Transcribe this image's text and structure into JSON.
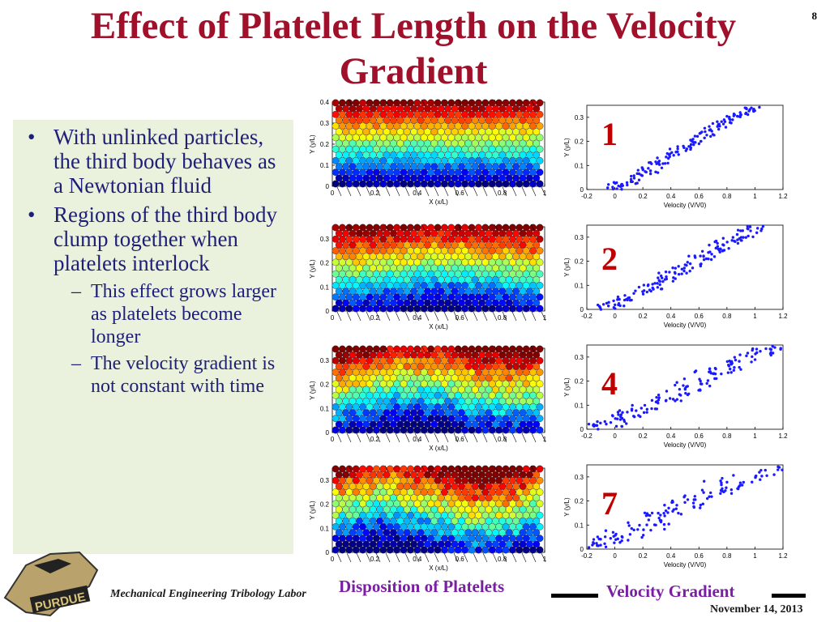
{
  "title": "Effect of Platelet Length on the Velocity Gradient",
  "slide_number": "8",
  "bullets": [
    {
      "level": 1,
      "text": "With unlinked particles, the third body behaves as a Newtonian fluid"
    },
    {
      "level": 1,
      "text": "Regions of the third body clump together when platelets interlock"
    },
    {
      "level": 2,
      "text": "This effect grows larger as platelets become longer"
    },
    {
      "level": 2,
      "text": "The velocity gradient is not constant with time"
    }
  ],
  "panel_labels": [
    "1",
    "2",
    "4",
    "7"
  ],
  "bottom_labels": {
    "left": "Disposition of Platelets",
    "right": "Velocity Gradient"
  },
  "footer": {
    "lab": "Mechanical Engineering Tribology Labor",
    "date": "November 14, 2013",
    "logo_text": "PURDUE"
  },
  "colors": {
    "title": "#a0102a",
    "bullet_text": "#1f1f78",
    "panel_label": "#c00000",
    "bottom_label": "#7b1fa2",
    "bullet_box_bg": "#eaf1dd",
    "scatter_points": "#1a1aff"
  },
  "chart_data": [
    {
      "type": "scatter",
      "panel": "1",
      "xlabel": "Velocity (V/V0)",
      "ylabel": "Y (y/L)",
      "xlim": [
        -0.2,
        1.2
      ],
      "ylim": [
        0,
        0.35
      ],
      "xticks": [
        "-0.2",
        "0",
        "0.2",
        "0.4",
        "0.6",
        "0.8",
        "1",
        "1.2"
      ],
      "yticks": [
        "0",
        "0.1",
        "0.2",
        "0.3"
      ],
      "x": [
        0.0,
        0.05,
        0.1,
        0.15,
        0.2,
        0.25,
        0.3,
        0.35,
        0.4,
        0.45,
        0.5,
        0.55,
        0.6,
        0.65,
        0.7,
        0.75,
        0.8,
        0.85,
        0.9,
        0.95,
        1.0
      ],
      "y": [
        0.01,
        0.02,
        0.03,
        0.05,
        0.07,
        0.08,
        0.1,
        0.12,
        0.14,
        0.16,
        0.17,
        0.19,
        0.21,
        0.23,
        0.25,
        0.27,
        0.28,
        0.3,
        0.31,
        0.33,
        0.34
      ]
    },
    {
      "type": "scatter",
      "panel": "2",
      "xlabel": "Velocity (V/V0)",
      "ylabel": "Y (y/L)",
      "xlim": [
        -0.2,
        1.2
      ],
      "ylim": [
        0,
        0.35
      ],
      "xticks": [
        "-0.2",
        "0",
        "0.2",
        "0.4",
        "0.6",
        "0.8",
        "1",
        "1.2"
      ],
      "yticks": [
        "0",
        "0.1",
        "0.2",
        "0.3"
      ],
      "x": [
        -0.05,
        0.0,
        0.05,
        0.1,
        0.2,
        0.25,
        0.3,
        0.35,
        0.4,
        0.45,
        0.5,
        0.55,
        0.6,
        0.65,
        0.7,
        0.75,
        0.8,
        0.85,
        0.9,
        0.95,
        1.0
      ],
      "y": [
        0.01,
        0.02,
        0.03,
        0.05,
        0.07,
        0.09,
        0.1,
        0.12,
        0.14,
        0.15,
        0.17,
        0.19,
        0.21,
        0.23,
        0.24,
        0.26,
        0.28,
        0.29,
        0.31,
        0.33,
        0.34
      ]
    },
    {
      "type": "scatter",
      "panel": "4",
      "xlabel": "Velocity (V/V0)",
      "ylabel": "Y (y/L)",
      "xlim": [
        -0.2,
        1.2
      ],
      "ylim": [
        0,
        0.35
      ],
      "xticks": [
        "-0.2",
        "0",
        "0.2",
        "0.4",
        "0.6",
        "0.8",
        "1",
        "1.2"
      ],
      "yticks": [
        "0",
        "0.1",
        "0.2",
        "0.3"
      ],
      "x": [
        -0.1,
        -0.05,
        0.0,
        0.05,
        0.1,
        0.15,
        0.2,
        0.3,
        0.35,
        0.4,
        0.5,
        0.55,
        0.6,
        0.7,
        0.75,
        0.8,
        0.85,
        0.9,
        1.0,
        1.1,
        1.2
      ],
      "y": [
        0.01,
        0.02,
        0.03,
        0.05,
        0.06,
        0.08,
        0.09,
        0.12,
        0.13,
        0.15,
        0.17,
        0.19,
        0.2,
        0.23,
        0.24,
        0.26,
        0.27,
        0.29,
        0.31,
        0.33,
        0.34
      ]
    },
    {
      "type": "scatter",
      "panel": "7",
      "xlabel": "Velocity (V/V0)",
      "ylabel": "Y (y/L)",
      "xlim": [
        -0.2,
        1.2
      ],
      "ylim": [
        0,
        0.35
      ],
      "xticks": [
        "-0.2",
        "0",
        "0.2",
        "0.4",
        "0.6",
        "0.8",
        "1",
        "1.2"
      ],
      "yticks": [
        "0",
        "0.1",
        "0.2",
        "0.3"
      ],
      "x": [
        -0.15,
        -0.1,
        -0.05,
        0.0,
        0.05,
        0.1,
        0.2,
        0.25,
        0.3,
        0.35,
        0.4,
        0.5,
        0.55,
        0.6,
        0.7,
        0.75,
        0.8,
        0.9,
        1.0,
        1.1,
        1.15
      ],
      "y": [
        0.01,
        0.02,
        0.03,
        0.04,
        0.05,
        0.07,
        0.09,
        0.11,
        0.13,
        0.14,
        0.16,
        0.18,
        0.2,
        0.21,
        0.24,
        0.25,
        0.27,
        0.29,
        0.31,
        0.33,
        0.34
      ]
    },
    {
      "type": "scatter",
      "panel": "disposition-1",
      "xlabel": "X (x/L)",
      "ylabel": "Y (y/L)",
      "xlim": [
        0,
        1
      ],
      "ylim": [
        0,
        0.4
      ],
      "xticks": [
        "0",
        "0.2",
        "0.4",
        "0.6",
        "0.8",
        "1"
      ],
      "yticks": [
        "0",
        "0.1",
        "0.2",
        "0.3",
        "0.4"
      ]
    },
    {
      "type": "scatter",
      "panel": "disposition-2",
      "xlabel": "X (x/L)",
      "ylabel": "Y (y/L)",
      "xlim": [
        0,
        1
      ],
      "ylim": [
        0,
        0.35
      ],
      "xticks": [
        "0",
        "0.2",
        "0.4",
        "0.6",
        "0.8",
        "1"
      ],
      "yticks": [
        "0",
        "0.1",
        "0.2",
        "0.3"
      ]
    },
    {
      "type": "scatter",
      "panel": "disposition-4",
      "xlabel": "X (x/L)",
      "ylabel": "Y (y/L)",
      "xlim": [
        0,
        1
      ],
      "ylim": [
        0,
        0.35
      ],
      "xticks": [
        "0",
        "0.2",
        "0.4",
        "0.6",
        "0.8",
        "1"
      ],
      "yticks": [
        "0",
        "0.1",
        "0.2",
        "0.3"
      ]
    },
    {
      "type": "scatter",
      "panel": "disposition-7",
      "xlabel": "X (x/L)",
      "ylabel": "Y (y/L)",
      "xlim": [
        0,
        1
      ],
      "ylim": [
        0,
        0.35
      ],
      "xticks": [
        "0",
        "0.2",
        "0.4",
        "0.6",
        "0.8",
        "1"
      ],
      "yticks": [
        "0",
        "0.1",
        "0.2",
        "0.3"
      ]
    }
  ]
}
